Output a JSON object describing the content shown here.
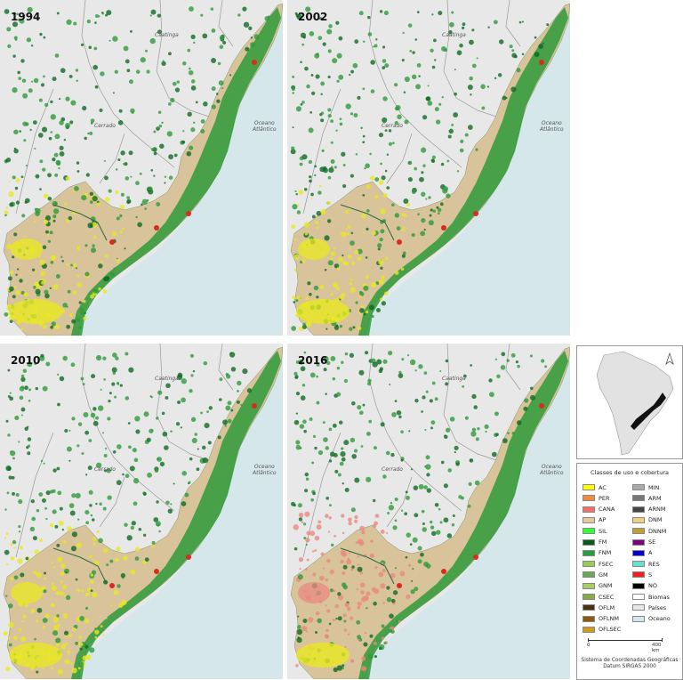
{
  "panels": [
    {
      "year": "1994",
      "biome_caatinga": "Caatinga",
      "biome_cerrado": "Cerrado",
      "ocean_label_1": "Oceano",
      "ocean_label_2": "Atlântico",
      "landuse": "pasture-crop"
    },
    {
      "year": "2002",
      "biome_caatinga": "Caatinga",
      "biome_cerrado": "Cerrado",
      "ocean_label_1": "Oceano",
      "ocean_label_2": "Atlântico",
      "landuse": "pasture-crop"
    },
    {
      "year": "2010",
      "biome_caatinga": "Caatinga",
      "biome_cerrado": "Cerrado",
      "ocean_label_1": "Oceano",
      "ocean_label_2": "Atlântico",
      "landuse": "crop-heavy"
    },
    {
      "year": "2016",
      "biome_caatinga": "Caatinga",
      "biome_cerrado": "Cerrado",
      "ocean_label_1": "Oceano",
      "ocean_label_2": "Atlântico",
      "landuse": "sugarcane"
    }
  ],
  "legend": {
    "title": "Classes de uso e cobertura",
    "left_items": [
      {
        "code": "AC",
        "color": "#ffff00"
      },
      {
        "code": "PER",
        "color": "#f08a3c"
      },
      {
        "code": "CANA",
        "color": "#f07070"
      },
      {
        "code": "AP",
        "color": "#e6c8a0"
      },
      {
        "code": "SIL",
        "color": "#33ff33"
      },
      {
        "code": "FM",
        "color": "#0a5a1a"
      },
      {
        "code": "FNM",
        "color": "#22a03a"
      },
      {
        "code": "FSEC",
        "color": "#99cc55"
      },
      {
        "code": "GM",
        "color": "#66aa55"
      },
      {
        "code": "GNM",
        "color": "#aacc66"
      },
      {
        "code": "CSEC",
        "color": "#88aa44"
      },
      {
        "code": "OFLM",
        "color": "#4a3010"
      },
      {
        "code": "OFLNM",
        "color": "#8a5a10"
      },
      {
        "code": "OFLSEC",
        "color": "#d09a20"
      }
    ],
    "right_items": [
      {
        "code": "MIN",
        "color": "#aaaaaa"
      },
      {
        "code": "ARM",
        "color": "#777777"
      },
      {
        "code": "ARNM",
        "color": "#444444"
      },
      {
        "code": "DNM",
        "color": "#f0d080"
      },
      {
        "code": "DNNM",
        "color": "#c0a030"
      },
      {
        "code": "SE",
        "color": "#800080"
      },
      {
        "code": "A",
        "color": "#0000cc"
      },
      {
        "code": "RES",
        "color": "#66e0d0"
      },
      {
        "code": "S",
        "color": "#ee2020"
      },
      {
        "code": "NO",
        "color": "#000000"
      },
      {
        "code": "Biomas",
        "color": "#ffffff"
      },
      {
        "code": "Países",
        "color": "#e8e8e8"
      },
      {
        "code": "Oceano",
        "color": "#d6e7ec"
      }
    ],
    "scale_start": "0",
    "scale_end": "400 km",
    "crs_line1": "Sistema de Coordenadas Geográficas",
    "crs_line2": "Datum SIRGAS 2000"
  },
  "colors": {
    "ocean": "#d6e7ec",
    "land_bg": "#e8e8e8",
    "pasture": "#d9c39a",
    "forest": "#2e9a3a",
    "dark_forest": "#0f6a24",
    "crop": "#e8e820",
    "cane": "#e88a80",
    "urban": "#dd2a20"
  }
}
